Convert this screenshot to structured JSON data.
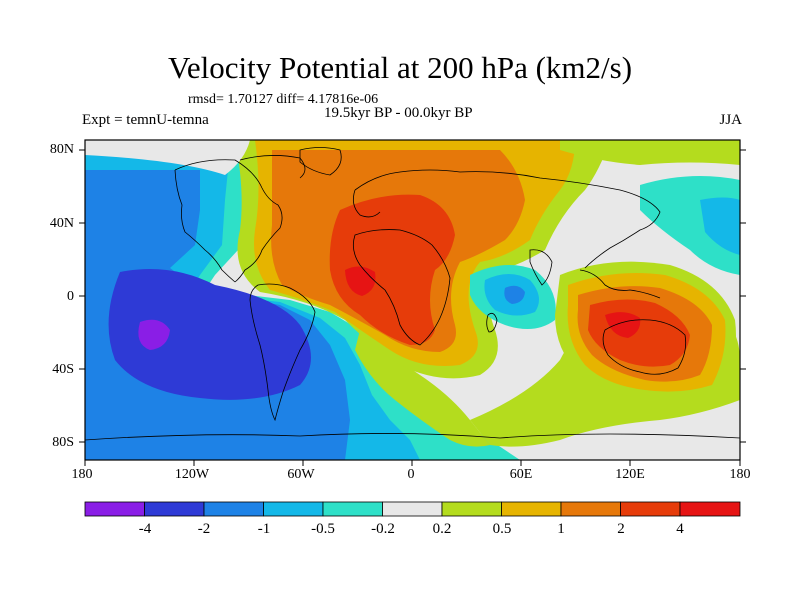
{
  "map": {
    "title": "Velocity Potential at 200 hPa (km2/s)",
    "stats": "rmsd= 1.70127 diff= 4.17816e-06",
    "period": "19.5kyr BP - 00.0kyr BP",
    "experiment": "Expt = temnU-temna",
    "season": "JJA",
    "lat_ticks": [
      "80N",
      "40N",
      "0",
      "40S",
      "80S"
    ],
    "lon_ticks": [
      "180",
      "120W",
      "60W",
      "0",
      "60E",
      "120E",
      "180"
    ],
    "lat_tick_values": [
      80,
      40,
      0,
      -40,
      -80
    ],
    "lon_tick_values": [
      -180,
      -120,
      -60,
      0,
      60,
      120,
      180
    ],
    "lat_range": [
      -90,
      90
    ],
    "lon_range": [
      -180,
      180
    ]
  },
  "colorbar": {
    "labels": [
      "-4",
      "-2",
      "-1",
      "-0.5",
      "-0.2",
      "0.2",
      "0.5",
      "1",
      "2",
      "4"
    ],
    "colors": [
      "#8a1ee6",
      "#2e3ad6",
      "#1e82e6",
      "#14b8e8",
      "#2ee0c8",
      "#e8e8e8",
      "#b4dc1e",
      "#e6b400",
      "#e6780a",
      "#e63c0a",
      "#e61414"
    ]
  },
  "legend_colors": {
    "purple": "#8a1ee6",
    "blue": "#2e3ad6",
    "mid_blue": "#1e82e6",
    "light_blue": "#14b8e8",
    "cyan": "#2ee0c8",
    "gray": "#e8e8e8",
    "lime": "#b4dc1e",
    "gold": "#e6b400",
    "orange": "#e6780a",
    "red_orange": "#e63c0a",
    "red": "#e61414"
  }
}
